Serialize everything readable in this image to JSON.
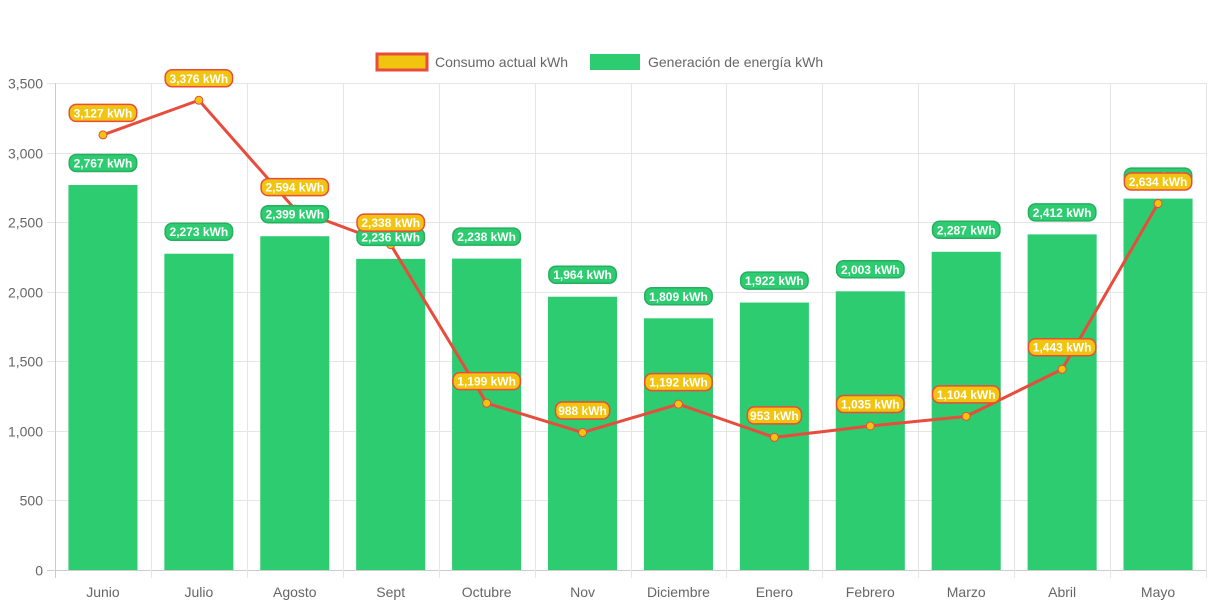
{
  "chart_data": {
    "type": "bar",
    "title": "",
    "xlabel": "",
    "ylabel": "",
    "ylim": [
      0,
      3500
    ],
    "yticks": [
      0,
      500,
      1000,
      1500,
      2000,
      2500,
      3000,
      3500
    ],
    "ytick_labels": [
      "0",
      "500",
      "1,000",
      "1,500",
      "2,000",
      "2,500",
      "3,000",
      "3,500"
    ],
    "grid": true,
    "legend_position": "top-center",
    "categories": [
      "Junio",
      "Julio",
      "Agosto",
      "Sept",
      "Octubre",
      "Nov",
      "Diciembre",
      "Enero",
      "Febrero",
      "Marzo",
      "Abril",
      "Mayo"
    ],
    "unit": "kWh",
    "series": [
      {
        "name": "Consumo actual kWh",
        "type": "line",
        "color": "#e74c3c",
        "fill": "#f1c40f",
        "values": [
          3127,
          3376,
          2594,
          2338,
          1199,
          988,
          1192,
          953,
          1035,
          1104,
          1443,
          2634
        ],
        "labels": [
          "3,127 kWh",
          "3,376 kWh",
          "2,594 kWh",
          "2,338 kWh",
          "1,199 kWh",
          "988 kWh",
          "1,192 kWh",
          "953 kWh",
          "1,035 kWh",
          "1,104 kWh",
          "1,443 kWh",
          "2,634 kWh"
        ]
      },
      {
        "name": "Generación de energía kWh",
        "type": "bar",
        "color": "#2ecc71",
        "values": [
          2767,
          2273,
          2399,
          2236,
          2238,
          1964,
          1809,
          1922,
          2003,
          2287,
          2412,
          2669
        ],
        "labels": [
          "2,767 kWh",
          "2,273 kWh",
          "2,399 kWh",
          "2,236 kWh",
          "2,238 kWh",
          "1,964 kWh",
          "1,809 kWh",
          "1,922 kWh",
          "2,003 kWh",
          "2,287 kWh",
          "2,412 kWh",
          "2,669 kWh"
        ]
      }
    ]
  }
}
